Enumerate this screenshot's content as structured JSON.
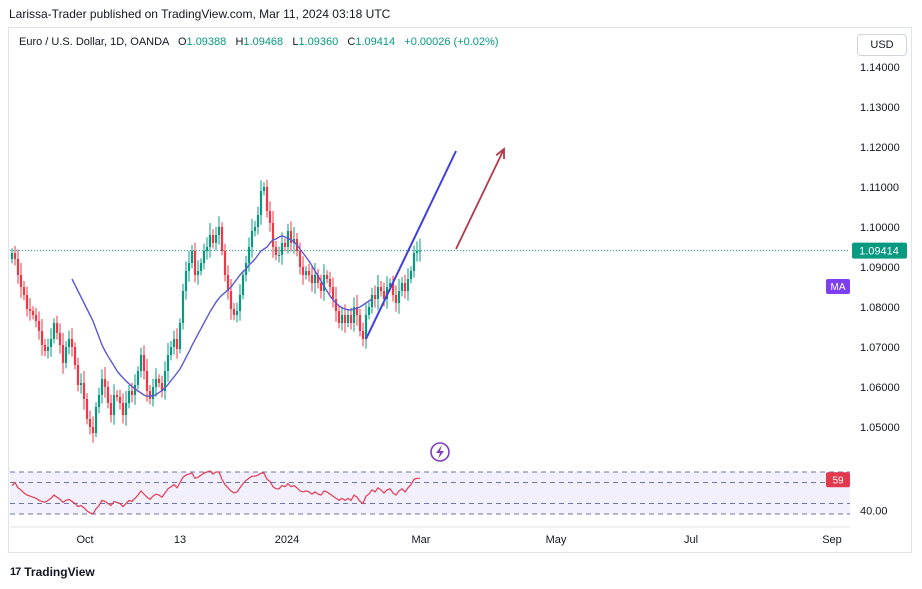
{
  "header": {
    "published": "Larissa-Trader published on TradingView.com, Mar 11, 2024 03:18 UTC"
  },
  "legend": {
    "symbol": "Euro / U.S. Dollar, 1D, OANDA",
    "o_label": "O",
    "o": "1.09388",
    "h_label": "H",
    "h": "1.09468",
    "l_label": "L",
    "l": "1.09360",
    "c_label": "C",
    "c": "1.09414",
    "change": "+0.00026 (+0.02%)"
  },
  "currency_button": "USD",
  "price_tag": "1.09414",
  "ma_tag": "MA",
  "rsi_tag": "59",
  "brand": "TradingView",
  "colors": {
    "up": "#089981",
    "down": "#f23645",
    "ma": "#5b57d1",
    "arrow": "#b2394a",
    "rsi_fill": "#f2f0fd",
    "rsi_line": "#e3394f",
    "rsi_dash": "#6b75a8",
    "price_line": "#089981"
  },
  "chart_data": [
    {
      "type": "candlestick",
      "x_ticks": [
        "Oct",
        "13",
        "2024",
        "Mar",
        "May",
        "Jul",
        "Sep"
      ],
      "y_ticks": [
        "1.14000",
        "1.13000",
        "1.12000",
        "1.11000",
        "1.10000",
        "1.09000",
        "1.08000",
        "1.07000",
        "1.06000",
        "1.05000"
      ],
      "close": [
        1.0935,
        1.092,
        1.088,
        1.085,
        1.083,
        1.0795,
        1.079,
        1.078,
        1.0765,
        1.074,
        1.0705,
        1.069,
        1.07,
        1.072,
        1.076,
        1.0735,
        1.0705,
        1.066,
        1.07,
        1.072,
        1.07,
        1.0655,
        1.0605,
        1.061,
        1.057,
        1.052,
        1.05,
        1.0485,
        1.055,
        1.058,
        1.062,
        1.06,
        1.056,
        1.053,
        1.058,
        1.0575,
        1.056,
        1.053,
        1.056,
        1.059,
        1.058,
        1.0605,
        1.064,
        1.068,
        1.064,
        1.059,
        1.057,
        1.06,
        1.062,
        1.061,
        1.059,
        1.064,
        1.068,
        1.07,
        1.072,
        1.0695,
        1.076,
        1.084,
        1.089,
        1.091,
        1.094,
        1.088,
        1.089,
        1.091,
        1.094,
        1.095,
        1.098,
        1.096,
        1.098,
        1.1,
        1.094,
        1.088,
        1.084,
        1.0795,
        1.078,
        1.079,
        1.083,
        1.088,
        1.091,
        1.095,
        1.099,
        1.1,
        1.103,
        1.109,
        1.11,
        1.104,
        1.101,
        1.095,
        1.093,
        1.093,
        1.096,
        1.095,
        1.099,
        1.096,
        1.097,
        1.094,
        1.09,
        1.088,
        1.089,
        1.088,
        1.086,
        1.088,
        1.086,
        1.084,
        1.088,
        1.087,
        1.085,
        1.082,
        1.079,
        1.076,
        1.078,
        1.076,
        1.078,
        1.076,
        1.08,
        1.078,
        1.074,
        1.072,
        1.078,
        1.08,
        1.083,
        1.082,
        1.085,
        1.084,
        1.082,
        1.085,
        1.086,
        1.083,
        1.081,
        1.084,
        1.086,
        1.084,
        1.087,
        1.089,
        1.0935,
        1.094,
        1.0941
      ],
      "ma_start_index": 20,
      "ma": [
        1.087,
        1.0855,
        1.084,
        1.0825,
        1.081,
        1.0795,
        1.078,
        1.0765,
        1.0745,
        1.0725,
        1.0705,
        1.069,
        1.0677,
        1.0665,
        1.0653,
        1.064,
        1.0631,
        1.0623,
        1.0615,
        1.0608,
        1.0601,
        1.0596,
        1.059,
        1.0585,
        1.058,
        1.0577,
        1.0577,
        1.0578,
        1.0581,
        1.0586,
        1.0591,
        1.0598,
        1.0606,
        1.0616,
        1.0625,
        1.0635,
        1.0645,
        1.0659,
        1.0674,
        1.0688,
        1.0704,
        1.0718,
        1.0732,
        1.0746,
        1.076,
        1.0774,
        1.0788,
        1.08,
        1.0812,
        1.0822,
        1.083,
        1.0836,
        1.0843,
        1.085,
        1.086,
        1.087,
        1.088,
        1.0888,
        1.0895,
        1.0905,
        1.0912,
        1.092,
        1.093,
        1.094,
        1.0945,
        1.095,
        1.096,
        1.0968,
        1.097,
        1.0975,
        1.0978,
        1.0975,
        1.0972,
        1.0968,
        1.0963,
        1.0955,
        1.0945,
        1.0935,
        1.0925,
        1.0915,
        1.0903,
        1.089,
        1.0878,
        1.0865,
        1.0852,
        1.084,
        1.0828,
        1.0818,
        1.081,
        1.0803,
        1.0798,
        1.0795,
        1.0793,
        1.0793,
        1.0795,
        1.0797,
        1.08,
        1.0805,
        1.081,
        1.0815,
        1.082
      ],
      "channel_line": {
        "start": [
          118,
          1.072
        ],
        "end": [
          148,
          1.119
        ]
      },
      "arrow": {
        "start": [
          148,
          1.0945
        ],
        "end": [
          164,
          1.1195
        ]
      }
    },
    {
      "type": "line",
      "name": "RSI",
      "y_ticks": [
        "40.00"
      ],
      "bands": [
        70,
        60,
        40,
        30
      ],
      "values": [
        57,
        60,
        55,
        53,
        50,
        48,
        47,
        46,
        45,
        43,
        42,
        41,
        43,
        45,
        48,
        46,
        44,
        41,
        43,
        44,
        42,
        40,
        37,
        38,
        36,
        33,
        31,
        30,
        35,
        38,
        43,
        42,
        40,
        38,
        42,
        41,
        40,
        37,
        40,
        43,
        42,
        45,
        48,
        52,
        49,
        46,
        44,
        47,
        49,
        48,
        46,
        50,
        54,
        56,
        58,
        55,
        60,
        65,
        67,
        68,
        69,
        64,
        65,
        67,
        69,
        70,
        71,
        68,
        70,
        70,
        63,
        58,
        55,
        52,
        50,
        51,
        55,
        59,
        62,
        64,
        66,
        66,
        67,
        69,
        69,
        63,
        61,
        56,
        54,
        54,
        57,
        56,
        59,
        56,
        57,
        55,
        52,
        51,
        52,
        51,
        49,
        51,
        49,
        48,
        52,
        51,
        49,
        47,
        45,
        43,
        45,
        43,
        45,
        43,
        48,
        46,
        42,
        40,
        47,
        49,
        53,
        51,
        55,
        53,
        50,
        53,
        54,
        50,
        48,
        52,
        54,
        51,
        55,
        58,
        63,
        64,
        64
      ]
    }
  ]
}
